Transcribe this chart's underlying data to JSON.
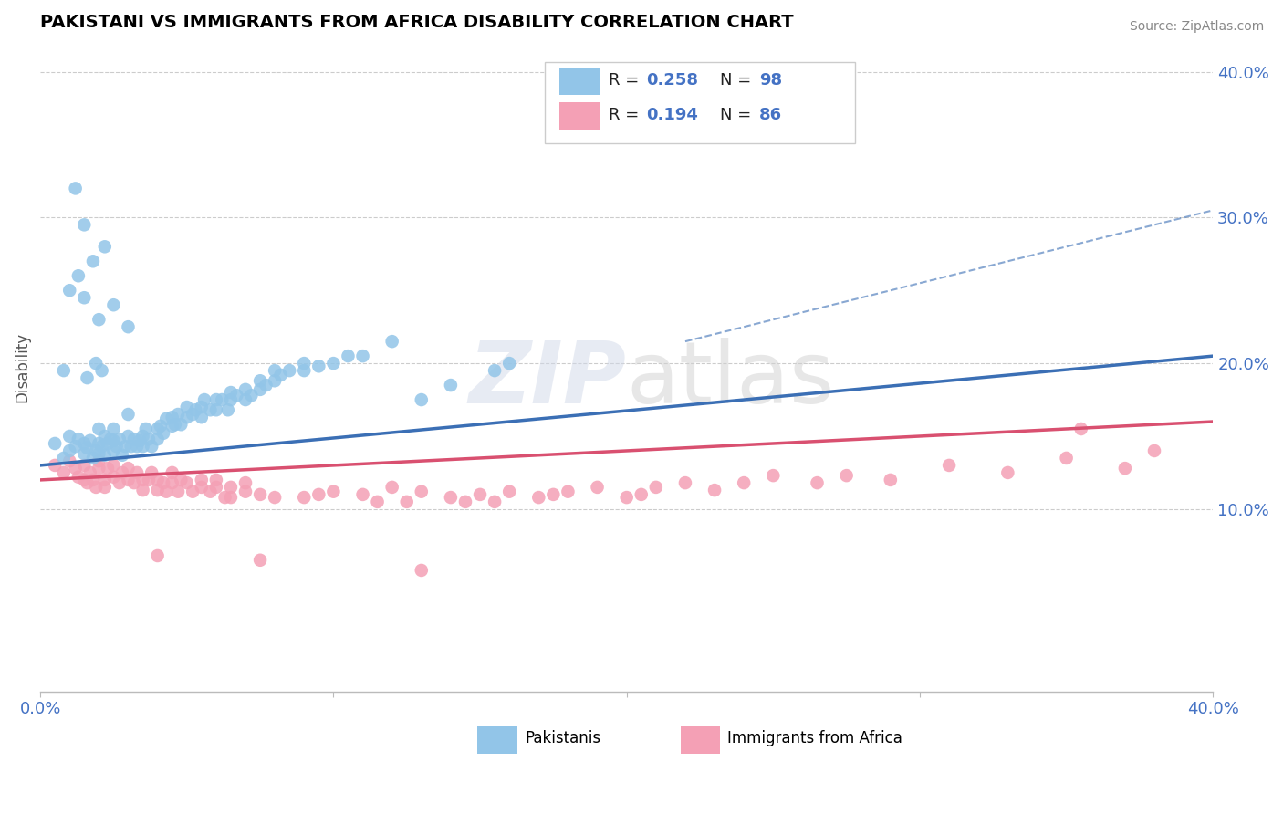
{
  "title": "PAKISTANI VS IMMIGRANTS FROM AFRICA DISABILITY CORRELATION CHART",
  "source": "Source: ZipAtlas.com",
  "ylabel": "Disability",
  "xlim": [
    0.0,
    0.4
  ],
  "ylim": [
    -0.025,
    0.42
  ],
  "blue_R": 0.258,
  "blue_N": 98,
  "pink_R": 0.194,
  "pink_N": 86,
  "blue_color": "#92C5E8",
  "pink_color": "#F4A0B5",
  "blue_line_color": "#3B6FB5",
  "pink_line_color": "#D95070",
  "legend_label1": "Pakistanis",
  "legend_label2": "Immigrants from Africa",
  "blue_scatter_x": [
    0.005,
    0.008,
    0.01,
    0.01,
    0.012,
    0.013,
    0.015,
    0.015,
    0.016,
    0.017,
    0.018,
    0.019,
    0.02,
    0.02,
    0.02,
    0.021,
    0.022,
    0.022,
    0.023,
    0.024,
    0.025,
    0.025,
    0.025,
    0.026,
    0.027,
    0.028,
    0.029,
    0.03,
    0.03,
    0.031,
    0.032,
    0.033,
    0.034,
    0.035,
    0.035,
    0.036,
    0.037,
    0.038,
    0.04,
    0.04,
    0.041,
    0.042,
    0.043,
    0.045,
    0.045,
    0.046,
    0.047,
    0.048,
    0.05,
    0.05,
    0.052,
    0.053,
    0.055,
    0.055,
    0.056,
    0.058,
    0.06,
    0.06,
    0.062,
    0.064,
    0.065,
    0.065,
    0.067,
    0.07,
    0.07,
    0.072,
    0.075,
    0.075,
    0.077,
    0.08,
    0.08,
    0.082,
    0.085,
    0.09,
    0.09,
    0.095,
    0.1,
    0.105,
    0.11,
    0.12,
    0.015,
    0.022,
    0.03,
    0.015,
    0.012,
    0.01,
    0.018,
    0.02,
    0.013,
    0.025,
    0.016,
    0.008,
    0.019,
    0.021,
    0.13,
    0.14,
    0.155,
    0.16
  ],
  "blue_scatter_y": [
    0.145,
    0.135,
    0.14,
    0.15,
    0.143,
    0.148,
    0.145,
    0.138,
    0.142,
    0.147,
    0.135,
    0.14,
    0.145,
    0.138,
    0.155,
    0.143,
    0.137,
    0.15,
    0.145,
    0.148,
    0.14,
    0.147,
    0.155,
    0.143,
    0.148,
    0.137,
    0.143,
    0.15,
    0.165,
    0.143,
    0.148,
    0.143,
    0.147,
    0.15,
    0.143,
    0.155,
    0.148,
    0.143,
    0.155,
    0.148,
    0.157,
    0.152,
    0.162,
    0.157,
    0.163,
    0.158,
    0.165,
    0.158,
    0.163,
    0.17,
    0.165,
    0.168,
    0.17,
    0.163,
    0.175,
    0.168,
    0.175,
    0.168,
    0.175,
    0.168,
    0.175,
    0.18,
    0.178,
    0.175,
    0.182,
    0.178,
    0.182,
    0.188,
    0.185,
    0.188,
    0.195,
    0.192,
    0.195,
    0.195,
    0.2,
    0.198,
    0.2,
    0.205,
    0.205,
    0.215,
    0.245,
    0.28,
    0.225,
    0.295,
    0.32,
    0.25,
    0.27,
    0.23,
    0.26,
    0.24,
    0.19,
    0.195,
    0.2,
    0.195,
    0.175,
    0.185,
    0.195,
    0.2
  ],
  "pink_scatter_x": [
    0.005,
    0.008,
    0.01,
    0.012,
    0.013,
    0.015,
    0.015,
    0.016,
    0.017,
    0.018,
    0.019,
    0.02,
    0.02,
    0.022,
    0.022,
    0.023,
    0.025,
    0.025,
    0.027,
    0.028,
    0.03,
    0.03,
    0.032,
    0.033,
    0.035,
    0.035,
    0.037,
    0.038,
    0.04,
    0.04,
    0.042,
    0.043,
    0.045,
    0.045,
    0.047,
    0.048,
    0.05,
    0.052,
    0.055,
    0.055,
    0.058,
    0.06,
    0.06,
    0.063,
    0.065,
    0.065,
    0.07,
    0.07,
    0.075,
    0.08,
    0.09,
    0.095,
    0.1,
    0.11,
    0.115,
    0.12,
    0.125,
    0.13,
    0.14,
    0.145,
    0.15,
    0.155,
    0.16,
    0.17,
    0.175,
    0.18,
    0.19,
    0.2,
    0.205,
    0.21,
    0.22,
    0.23,
    0.24,
    0.25,
    0.265,
    0.275,
    0.29,
    0.31,
    0.33,
    0.35,
    0.37,
    0.38,
    0.355,
    0.04,
    0.075,
    0.13
  ],
  "pink_scatter_y": [
    0.13,
    0.125,
    0.133,
    0.128,
    0.122,
    0.13,
    0.12,
    0.118,
    0.125,
    0.12,
    0.115,
    0.128,
    0.133,
    0.12,
    0.115,
    0.128,
    0.122,
    0.13,
    0.118,
    0.125,
    0.12,
    0.128,
    0.118,
    0.125,
    0.12,
    0.113,
    0.12,
    0.125,
    0.113,
    0.12,
    0.118,
    0.112,
    0.118,
    0.125,
    0.112,
    0.12,
    0.118,
    0.112,
    0.115,
    0.12,
    0.112,
    0.115,
    0.12,
    0.108,
    0.115,
    0.108,
    0.112,
    0.118,
    0.11,
    0.108,
    0.108,
    0.11,
    0.112,
    0.11,
    0.105,
    0.115,
    0.105,
    0.112,
    0.108,
    0.105,
    0.11,
    0.105,
    0.112,
    0.108,
    0.11,
    0.112,
    0.115,
    0.108,
    0.11,
    0.115,
    0.118,
    0.113,
    0.118,
    0.123,
    0.118,
    0.123,
    0.12,
    0.13,
    0.125,
    0.135,
    0.128,
    0.14,
    0.155,
    0.068,
    0.065,
    0.058
  ],
  "blue_trend_x": [
    0.0,
    0.4
  ],
  "blue_trend_y_start": 0.13,
  "blue_trend_y_end": 0.205,
  "pink_trend_x": [
    0.0,
    0.4
  ],
  "pink_trend_y_start": 0.12,
  "pink_trend_y_end": 0.16,
  "dashed_line_x": [
    0.22,
    0.4
  ],
  "dashed_line_y": [
    0.215,
    0.305
  ]
}
